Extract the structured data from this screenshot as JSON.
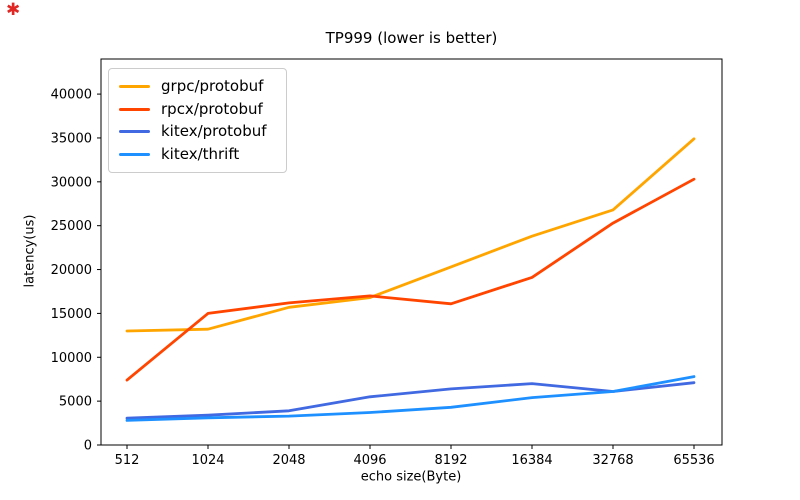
{
  "figure": {
    "background": "#ffffff",
    "corner_marker": "✱"
  },
  "chart_data": {
    "type": "line",
    "title": "TP999 (lower is better)",
    "xlabel": "echo size(Byte)",
    "ylabel": "latency(us)",
    "categories": [
      "512",
      "1024",
      "2048",
      "4096",
      "8192",
      "16384",
      "32768",
      "65536"
    ],
    "series": [
      {
        "name": "grpc/protobuf",
        "color": "#ffa500",
        "values": [
          13000,
          13200,
          15700,
          16800,
          20300,
          23800,
          26800,
          34900
        ]
      },
      {
        "name": "rpcx/protobuf",
        "color": "#ff4500",
        "values": [
          7400,
          15000,
          16200,
          17000,
          16100,
          19100,
          25300,
          30300
        ]
      },
      {
        "name": "kitex/protobuf",
        "color": "#4169e1",
        "values": [
          3050,
          3400,
          3900,
          5500,
          6400,
          7000,
          6100,
          7100
        ]
      },
      {
        "name": "kitex/thrift",
        "color": "#1e90ff",
        "values": [
          2800,
          3100,
          3300,
          3700,
          4300,
          5400,
          6100,
          7800
        ]
      }
    ],
    "ylim": [
      0,
      44000
    ],
    "yticks": [
      0,
      5000,
      10000,
      15000,
      20000,
      25000,
      30000,
      35000,
      40000
    ],
    "grid": false,
    "legend_position": "upper left",
    "axis_color": "#000000",
    "tick_fontsize": 13
  }
}
